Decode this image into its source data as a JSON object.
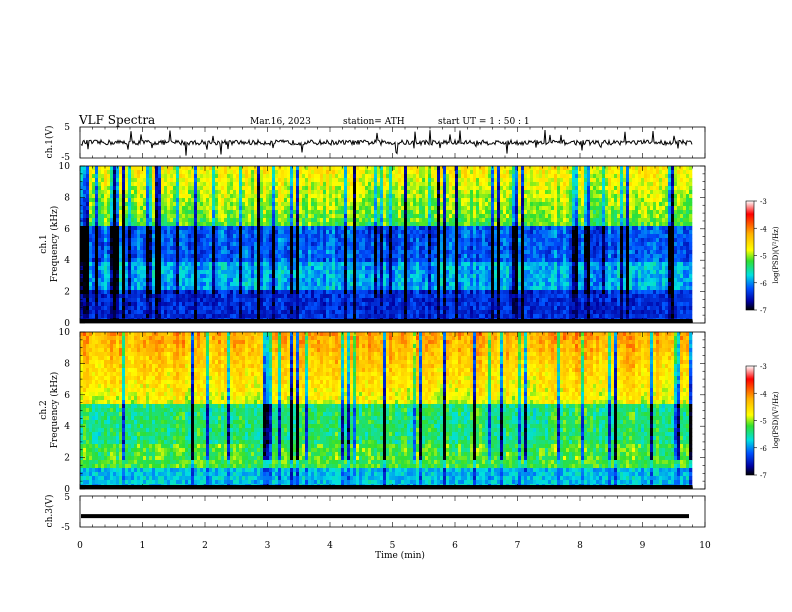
{
  "header": {
    "title": "VLF  Spectra",
    "date": "Mar.16,  2023",
    "station": "station= ATH",
    "start": "start  UT  =   1 : 50 : 1"
  },
  "chart_data": [
    {
      "type": "line",
      "panel": "ch1-waveform",
      "ylabel": "ch.1(V)",
      "ylim": [
        -5,
        5
      ],
      "yticks": [
        "5",
        "-5"
      ],
      "baseline": 0,
      "color": "#000000"
    },
    {
      "type": "heatmap",
      "panel": "ch1-spectrogram",
      "ylabel": "ch.1\nFrequency (kHz)",
      "ylim": [
        0,
        10
      ],
      "yticks": [
        "0",
        "2",
        "4",
        "6",
        "8",
        "10"
      ],
      "colorbar": {
        "label": "log(PSD)(V²/Hz)",
        "range": [
          -7,
          -3
        ],
        "ticks": [
          "-3",
          "-4",
          "-5",
          "-6",
          "-7"
        ]
      }
    },
    {
      "type": "heatmap",
      "panel": "ch2-spectrogram",
      "ylabel": "ch.2\nFrequency (kHz)",
      "ylim": [
        0,
        10
      ],
      "yticks": [
        "0",
        "2",
        "4",
        "6",
        "8",
        "10"
      ],
      "colorbar": {
        "label": "log(PSD)(V²/Hz)",
        "range": [
          -7,
          -3
        ],
        "ticks": [
          "-3",
          "-4",
          "-5",
          "-6",
          "-7"
        ]
      }
    },
    {
      "type": "line",
      "panel": "ch3-waveform",
      "ylabel": "ch.3(V)",
      "ylim": [
        -5,
        5
      ],
      "yticks": [
        "5",
        "-5"
      ],
      "baseline": -1.5,
      "color": "#000000"
    }
  ],
  "xaxis": {
    "label": "Time  (min)",
    "range": [
      0,
      10
    ],
    "ticks": [
      "0",
      "1",
      "2",
      "3",
      "4",
      "5",
      "6",
      "7",
      "8",
      "9",
      "10"
    ],
    "data_end": 9.8
  }
}
